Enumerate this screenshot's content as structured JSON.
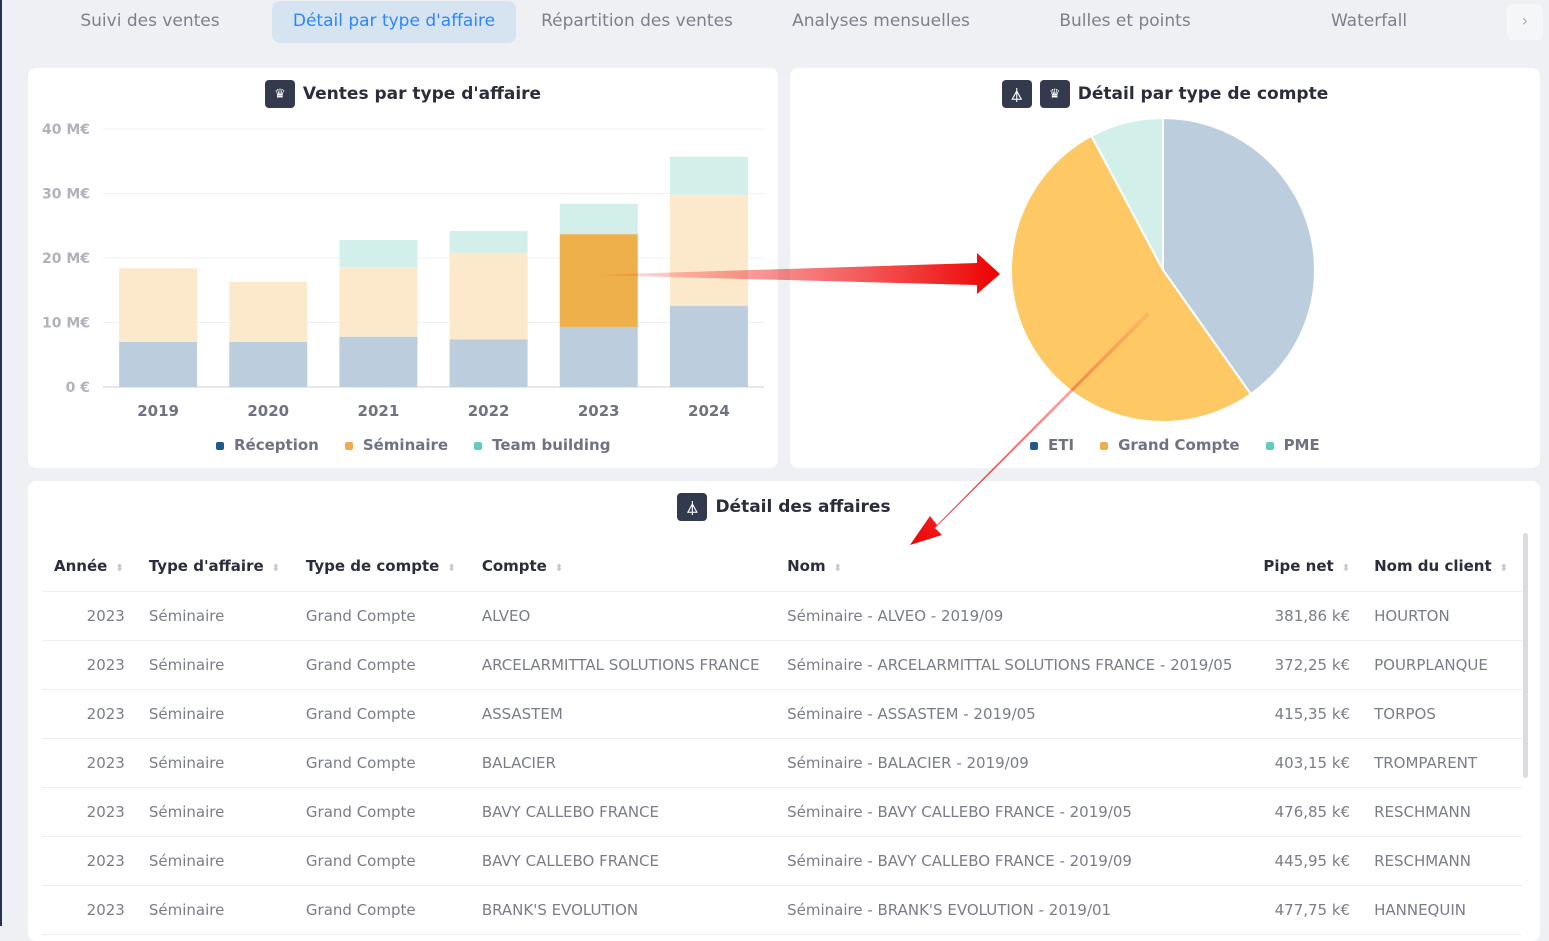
{
  "tabs": [
    "Suivi des ventes",
    "Détail par type d'affaire",
    "Répartition des ventes",
    "Analyses mensuelles",
    "Bulles et points",
    "Waterfall"
  ],
  "active_tab": 1,
  "tab_next": "›",
  "bar_card": {
    "title": "Ventes par type d'affaire"
  },
  "pie_card": {
    "title": "Détail par type de compte"
  },
  "table_card": {
    "title": "Détail des affaires"
  },
  "chart_data": [
    {
      "type": "bar",
      "stacked": true,
      "title": "Ventes par type d'affaire",
      "categories": [
        "2019",
        "2020",
        "2021",
        "2022",
        "2023",
        "2024"
      ],
      "yticks": [
        "0 €",
        "10 M€",
        "20 M€",
        "30 M€",
        "40 M€"
      ],
      "ylim": [
        0,
        40
      ],
      "selected": "2023",
      "series": [
        {
          "name": "Réception",
          "color": "#1f5a8a",
          "values": [
            7.0,
            7.0,
            7.8,
            7.4,
            9.3,
            12.6
          ]
        },
        {
          "name": "Séminaire",
          "color": "#f0ad4e",
          "values": [
            11.4,
            9.3,
            10.8,
            13.4,
            14.4,
            17.2
          ]
        },
        {
          "name": "Team building",
          "color": "#5fd0c0",
          "values": [
            0,
            0,
            4.2,
            3.4,
            4.7,
            5.9
          ]
        }
      ],
      "legend": "bottom"
    },
    {
      "type": "pie",
      "title": "Détail par type de compte",
      "slices": [
        {
          "name": "ETI",
          "value": 40.2,
          "color": "#bccedd",
          "legend_color": "#1f5a8a"
        },
        {
          "name": "Grand Compte",
          "value": 52.0,
          "color": "#fec865",
          "legend_color": "#f0ad4e"
        },
        {
          "name": "PME",
          "value": 7.8,
          "color": "#d2efea",
          "legend_color": "#5fd0c0"
        }
      ],
      "legend": "bottom"
    }
  ],
  "table": {
    "columns": [
      "Année",
      "Type d'affaire",
      "Type de compte",
      "Compte",
      "Nom",
      "Pipe net",
      "Nom du client"
    ],
    "rows": [
      [
        "2023",
        "Séminaire",
        "Grand Compte",
        "ALVEO",
        "Séminaire - ALVEO - 2019/09",
        "381,86 k€",
        "HOURTON"
      ],
      [
        "2023",
        "Séminaire",
        "Grand Compte",
        "ARCELARMITTAL SOLUTIONS FRANCE",
        "Séminaire - ARCELARMITTAL SOLUTIONS FRANCE - 2019/05",
        "372,25 k€",
        "POURPLANQUE"
      ],
      [
        "2023",
        "Séminaire",
        "Grand Compte",
        "ASSASTEM",
        "Séminaire - ASSASTEM - 2019/05",
        "415,35 k€",
        "TORPOS"
      ],
      [
        "2023",
        "Séminaire",
        "Grand Compte",
        "BALACIER",
        "Séminaire - BALACIER - 2019/09",
        "403,15 k€",
        "TROMPARENT"
      ],
      [
        "2023",
        "Séminaire",
        "Grand Compte",
        "BAVY CALLEBO FRANCE",
        "Séminaire - BAVY CALLEBO FRANCE - 2019/05",
        "476,85 k€",
        "RESCHMANN"
      ],
      [
        "2023",
        "Séminaire",
        "Grand Compte",
        "BAVY CALLEBO FRANCE",
        "Séminaire - BAVY CALLEBO FRANCE - 2019/09",
        "445,95 k€",
        "RESCHMANN"
      ],
      [
        "2023",
        "Séminaire",
        "Grand Compte",
        "BRANK'S EVOLUTION",
        "Séminaire - BRANK'S EVOLUTION - 2019/01",
        "477,75 k€",
        "HANNEQUIN"
      ]
    ]
  }
}
